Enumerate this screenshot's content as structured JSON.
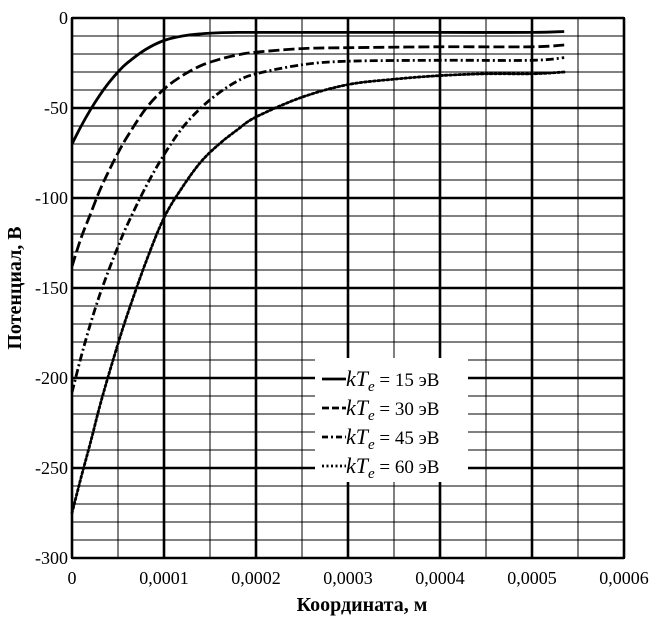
{
  "chart_data": {
    "type": "line",
    "title": "",
    "xlabel": "Координата, м",
    "ylabel": "Потенциал, В",
    "xlim": [
      0,
      0.0006
    ],
    "ylim": [
      -300,
      0
    ],
    "x_ticks": [
      0,
      0.0001,
      0.0002,
      0.0003,
      0.0004,
      0.0005,
      0.0006
    ],
    "x_tick_labels": [
      "0",
      "0,0001",
      "0,0002",
      "0,0003",
      "0,0004",
      "0,0005",
      "0,0006"
    ],
    "y_ticks": [
      0,
      -50,
      -100,
      -150,
      -200,
      -250,
      -300
    ],
    "y_tick_labels": [
      "0",
      "-50",
      "-100",
      "-150",
      "-200",
      "-250",
      "-300"
    ],
    "grid": true,
    "legend_position": "lower-right",
    "legend_unit": "эВ",
    "series": [
      {
        "name": "kTe = 15 эВ",
        "var_main": "kT",
        "var_sub": "e",
        "eq_text": " = 15 эВ",
        "style": "solid",
        "x": [
          0,
          1e-05,
          2e-05,
          3e-05,
          4e-05,
          5e-05,
          6e-05,
          8e-05,
          0.0001,
          0.00012,
          0.00014,
          0.00016,
          0.00018,
          0.0002,
          0.00025,
          0.0003,
          0.0004,
          0.0005,
          0.000535
        ],
        "values": [
          -70,
          -60,
          -51,
          -43,
          -36,
          -30,
          -25,
          -17.5,
          -12.5,
          -10,
          -8.8,
          -8.2,
          -8,
          -8,
          -8,
          -8,
          -8,
          -8,
          -7.5
        ]
      },
      {
        "name": "kTe = 30 эВ",
        "var_main": "kT",
        "var_sub": "e",
        "eq_text": " = 30 эВ",
        "style": "dashed",
        "x": [
          0,
          1e-05,
          2e-05,
          3e-05,
          4e-05,
          5e-05,
          6e-05,
          8e-05,
          0.0001,
          0.00012,
          0.00014,
          0.00016,
          0.00018,
          0.0002,
          0.00025,
          0.0003,
          0.0004,
          0.0005,
          0.000535
        ],
        "values": [
          -138,
          -122,
          -109,
          -96,
          -85,
          -75,
          -66,
          -50.5,
          -39.5,
          -32,
          -26.5,
          -23,
          -20.5,
          -19,
          -17,
          -16.5,
          -16,
          -16,
          -15
        ]
      },
      {
        "name": "kTe = 45 эВ",
        "var_main": "kT",
        "var_sub": "e",
        "eq_text": " = 45 эВ",
        "style": "dashdot",
        "x": [
          0,
          1e-05,
          2e-05,
          3e-05,
          4e-05,
          5e-05,
          6e-05,
          8e-05,
          0.0001,
          0.00012,
          0.00014,
          0.00016,
          0.00018,
          0.0002,
          0.00025,
          0.0003,
          0.0004,
          0.0005,
          0.000535
        ],
        "values": [
          -208,
          -188,
          -170,
          -154,
          -140,
          -127,
          -115,
          -94,
          -76,
          -61,
          -50,
          -41.5,
          -35,
          -31,
          -26,
          -24,
          -23.5,
          -23.5,
          -22
        ]
      },
      {
        "name": "kTe = 60 эВ",
        "var_main": "kT",
        "var_sub": "e",
        "eq_text": " = 60 эВ",
        "style": "dotted",
        "x": [
          0,
          1e-05,
          2e-05,
          3e-05,
          4e-05,
          5e-05,
          6e-05,
          8e-05,
          0.0001,
          0.00012,
          0.00014,
          0.00016,
          0.00018,
          0.0002,
          0.00025,
          0.0003,
          0.00035,
          0.0004,
          0.00045,
          0.0005,
          0.000535
        ],
        "values": [
          -275,
          -255,
          -236,
          -216,
          -198,
          -181,
          -165,
          -136,
          -111,
          -94,
          -80,
          -70,
          -62,
          -55,
          -44,
          -37,
          -34,
          -32,
          -31,
          -31,
          -30
        ]
      }
    ]
  }
}
